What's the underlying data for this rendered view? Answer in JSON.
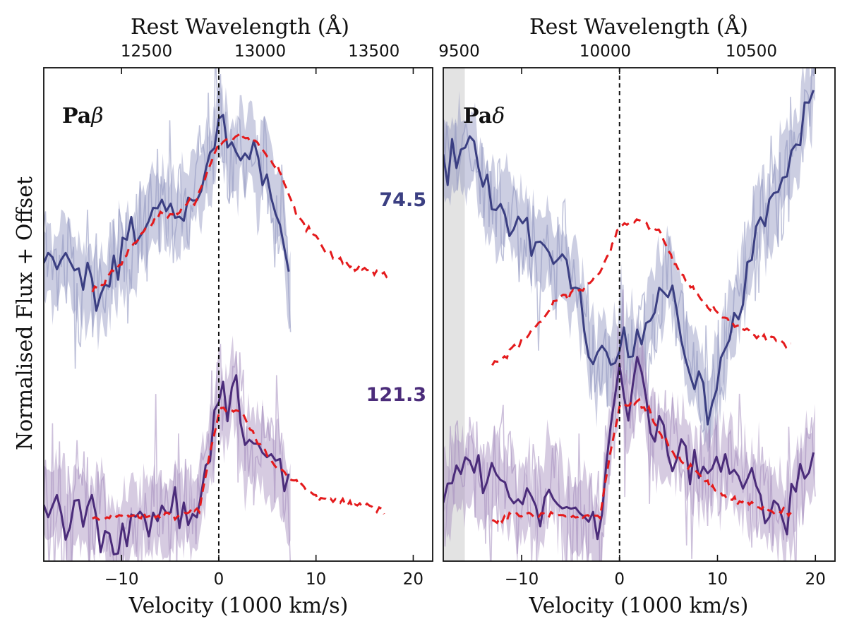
{
  "chart_data": {
    "type": "line",
    "ylabel": "Normalised Flux + Offset",
    "xlabel": "Velocity (1000 km/s)",
    "top_xlabel": "Rest Wavelength (Å)",
    "model_line_color": "#e41a1c",
    "panels": [
      {
        "label_prefix": "Pa",
        "label_greek": "β",
        "rest_wavelength_angstrom": 12818,
        "xlim": [
          -18,
          22
        ],
        "x_ticks": [
          -10,
          0,
          10,
          20
        ],
        "x_tick_labels": [
          "−10",
          "0",
          "10",
          "20"
        ],
        "top_ticks_angstrom": [
          12500,
          13000,
          13500
        ],
        "top_tick_labels": [
          "12500",
          "13000",
          "13500"
        ],
        "data_extent": [
          -18,
          7.5
        ],
        "gray_band": null,
        "series": [
          {
            "name": "74.5",
            "color": "#3b3f82",
            "fill_color": "#8d92be",
            "obs_x": [
              -18,
              -16,
              -14,
              -12.5,
              -11,
              -10,
              -8,
              -6,
              -4,
              -2,
              -1,
              0,
              1,
              2,
              3,
              4,
              5,
              6,
              6.5,
              7,
              7.5
            ],
            "obs_y": [
              1.3,
              1.32,
              1.22,
              1.18,
              1.24,
              1.33,
              1.42,
              1.55,
              1.49,
              1.63,
              1.74,
              1.92,
              1.8,
              1.76,
              1.83,
              1.68,
              1.71,
              1.5,
              1.55,
              1.25,
              1.15
            ],
            "model_x": [
              -13,
              -10,
              -8,
              -6,
              -4,
              -2,
              0,
              2,
              4,
              6,
              8,
              10,
              12,
              14,
              16,
              17.5
            ],
            "model_y": [
              1.18,
              1.3,
              1.43,
              1.51,
              1.52,
              1.6,
              1.82,
              1.86,
              1.82,
              1.72,
              1.52,
              1.4,
              1.32,
              1.28,
              1.26,
              1.25
            ]
          },
          {
            "name": "121.3",
            "color": "#4b2c7a",
            "fill_color": "#a48cbd",
            "obs_x": [
              -18,
              -16,
              -14,
              -12,
              -11,
              -10,
              -8,
              -6,
              -4,
              -3,
              -2,
              -1,
              0,
              1,
              1.5,
              2,
              3,
              4,
              5,
              6,
              7,
              7.5
            ],
            "obs_y": [
              0.25,
              0.2,
              0.22,
              0.22,
              0.05,
              0.12,
              0.22,
              0.2,
              0.22,
              0.18,
              0.22,
              0.45,
              0.73,
              0.62,
              0.8,
              0.58,
              0.52,
              0.5,
              0.4,
              0.42,
              0.3,
              0.4
            ],
            "model_x": [
              -13,
              -10,
              -8,
              -6,
              -4,
              -2,
              -1,
              0,
              2,
              3,
              4,
              6,
              8,
              10,
              12,
              14,
              16,
              17
            ],
            "model_y": [
              0.18,
              0.2,
              0.2,
              0.2,
              0.2,
              0.22,
              0.45,
              0.65,
              0.66,
              0.6,
              0.52,
              0.4,
              0.34,
              0.28,
              0.26,
              0.25,
              0.23,
              0.22
            ]
          }
        ]
      },
      {
        "label_prefix": "Pa",
        "label_greek": "δ",
        "rest_wavelength_angstrom": 10049,
        "xlim": [
          -18,
          22
        ],
        "x_ticks": [
          -10,
          0,
          10,
          20
        ],
        "x_tick_labels": [
          "−10",
          "0",
          "10",
          "20"
        ],
        "top_ticks_angstrom": [
          9500,
          10000,
          10500
        ],
        "top_tick_labels": [
          "9500",
          "10000",
          "10500"
        ],
        "data_extent": [
          -18,
          20
        ],
        "gray_band": [
          -18,
          -15.8
        ],
        "series": [
          {
            "name": "74.5",
            "color": "#3b3f82",
            "fill_color": "#8d92be",
            "obs_x": [
              -18,
              -16,
              -15,
              -14,
              -12,
              -10,
              -8,
              -6,
              -4,
              -3,
              -2,
              -1,
              0,
              1,
              2,
              4,
              5,
              7,
              8,
              9,
              10,
              12,
              14,
              16,
              18,
              19,
              20
            ],
            "obs_y": [
              1.75,
              1.78,
              1.8,
              1.6,
              1.55,
              1.46,
              1.36,
              1.3,
              1.18,
              0.85,
              0.9,
              0.85,
              1.0,
              0.92,
              0.95,
              1.15,
              1.25,
              0.9,
              0.8,
              0.62,
              0.75,
              1.1,
              1.45,
              1.58,
              1.8,
              2.0,
              2.1
            ],
            "model_x": [
              -13,
              -10,
              -8,
              -6,
              -4,
              -2,
              0,
              2,
              4,
              6,
              8,
              10,
              12,
              14,
              16,
              17.5
            ],
            "model_y": [
              0.85,
              0.95,
              1.05,
              1.15,
              1.18,
              1.25,
              1.46,
              1.49,
              1.44,
              1.28,
              1.15,
              1.08,
              1.02,
              0.98,
              0.96,
              0.95
            ]
          },
          {
            "name": "121.3",
            "color": "#4b2c7a",
            "fill_color": "#a48cbd",
            "obs_x": [
              -18,
              -16,
              -15,
              -14,
              -13,
              -12,
              -10,
              -8,
              -7,
              -6,
              -5,
              -4,
              -2,
              -1,
              0,
              1,
              2,
              3,
              4,
              6,
              8,
              10,
              12,
              14,
              16,
              17,
              18,
              19,
              20
            ],
            "obs_y": [
              0.3,
              0.4,
              0.45,
              0.3,
              0.4,
              0.35,
              0.3,
              0.25,
              0.35,
              0.28,
              0.22,
              0.2,
              0.08,
              0.55,
              0.9,
              0.62,
              0.85,
              0.6,
              0.55,
              0.48,
              0.35,
              0.42,
              0.38,
              0.3,
              0.22,
              0.12,
              0.3,
              0.42,
              0.48
            ],
            "model_x": [
              -13,
              -10,
              -8,
              -6,
              -4,
              -2,
              -1,
              0,
              2,
              3,
              4,
              6,
              8,
              10,
              12,
              14,
              16,
              17.5
            ],
            "model_y": [
              0.18,
              0.2,
              0.2,
              0.2,
              0.2,
              0.2,
              0.45,
              0.68,
              0.7,
              0.66,
              0.56,
              0.45,
              0.38,
              0.3,
              0.26,
              0.24,
              0.22,
              0.21
            ]
          }
        ]
      }
    ]
  }
}
